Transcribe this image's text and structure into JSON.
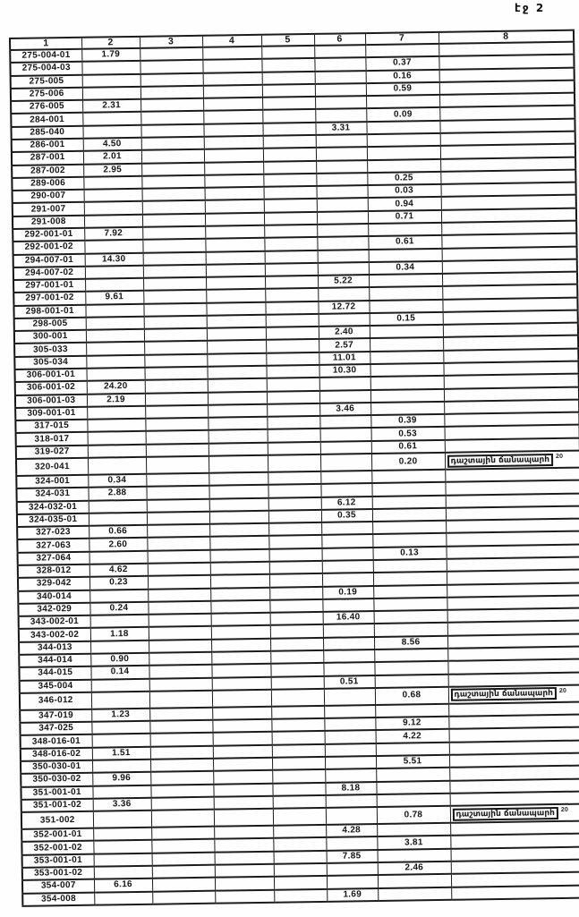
{
  "page": {
    "label": "էջ 2"
  },
  "colors": {
    "paper": "#ffffff",
    "ink": "#1a1a1a"
  },
  "table": {
    "headers": [
      "1",
      "2",
      "3",
      "4",
      "5",
      "6",
      "7",
      "8"
    ],
    "note": {
      "text": "դաշտային ճանապարհ",
      "sup": "20"
    },
    "note_row_indices": [
      32,
      50,
      59
    ],
    "rows": [
      [
        "275-004-01",
        "1.79",
        "",
        "",
        "",
        "",
        "",
        ""
      ],
      [
        "275-004-03",
        "",
        "",
        "",
        "",
        "",
        "0.37",
        ""
      ],
      [
        "275-005",
        "",
        "",
        "",
        "",
        "",
        "0.16",
        ""
      ],
      [
        "275-006",
        "",
        "",
        "",
        "",
        "",
        "0.59",
        ""
      ],
      [
        "276-005",
        "2.31",
        "",
        "",
        "",
        "",
        "",
        ""
      ],
      [
        "284-001",
        "",
        "",
        "",
        "",
        "",
        "0.09",
        ""
      ],
      [
        "285-040",
        "",
        "",
        "",
        "",
        "3.31",
        "",
        ""
      ],
      [
        "286-001",
        "4.50",
        "",
        "",
        "",
        "",
        "",
        ""
      ],
      [
        "287-001",
        "2.01",
        "",
        "",
        "",
        "",
        "",
        ""
      ],
      [
        "287-002",
        "2.95",
        "",
        "",
        "",
        "",
        "",
        ""
      ],
      [
        "289-006",
        "",
        "",
        "",
        "",
        "",
        "0.25",
        ""
      ],
      [
        "290-007",
        "",
        "",
        "",
        "",
        "",
        "0.03",
        ""
      ],
      [
        "291-007",
        "",
        "",
        "",
        "",
        "",
        "0.94",
        ""
      ],
      [
        "291-008",
        "",
        "",
        "",
        "",
        "",
        "0.71",
        ""
      ],
      [
        "292-001-01",
        "7.92",
        "",
        "",
        "",
        "",
        "",
        ""
      ],
      [
        "292-001-02",
        "",
        "",
        "",
        "",
        "",
        "0.61",
        ""
      ],
      [
        "294-007-01",
        "14.30",
        "",
        "",
        "",
        "",
        "",
        ""
      ],
      [
        "294-007-02",
        "",
        "",
        "",
        "",
        "",
        "0.34",
        ""
      ],
      [
        "297-001-01",
        "",
        "",
        "",
        "",
        "5.22",
        "",
        ""
      ],
      [
        "297-001-02",
        "9.61",
        "",
        "",
        "",
        "",
        "",
        ""
      ],
      [
        "298-001-01",
        "",
        "",
        "",
        "",
        "12.72",
        "",
        ""
      ],
      [
        "298-005",
        "",
        "",
        "",
        "",
        "",
        "0.15",
        ""
      ],
      [
        "300-001",
        "",
        "",
        "",
        "",
        "2.40",
        "",
        ""
      ],
      [
        "305-033",
        "",
        "",
        "",
        "",
        "2.57",
        "",
        ""
      ],
      [
        "305-034",
        "",
        "",
        "",
        "",
        "11.01",
        "",
        ""
      ],
      [
        "306-001-01",
        "",
        "",
        "",
        "",
        "10.30",
        "",
        ""
      ],
      [
        "306-001-02",
        "24.20",
        "",
        "",
        "",
        "",
        "",
        ""
      ],
      [
        "306-001-03",
        "2.19",
        "",
        "",
        "",
        "",
        "",
        ""
      ],
      [
        "309-001-01",
        "",
        "",
        "",
        "",
        "3.46",
        "",
        ""
      ],
      [
        "317-015",
        "",
        "",
        "",
        "",
        "",
        "0.39",
        ""
      ],
      [
        "318-017",
        "",
        "",
        "",
        "",
        "",
        "0.53",
        ""
      ],
      [
        "319-027",
        "",
        "",
        "",
        "",
        "",
        "0.61",
        ""
      ],
      [
        "320-041",
        "",
        "",
        "",
        "",
        "",
        "0.20",
        ""
      ],
      [
        "324-001",
        "0.34",
        "",
        "",
        "",
        "",
        "",
        ""
      ],
      [
        "324-031",
        "2.88",
        "",
        "",
        "",
        "",
        "",
        ""
      ],
      [
        "324-032-01",
        "",
        "",
        "",
        "",
        "6.12",
        "",
        ""
      ],
      [
        "324-035-01",
        "",
        "",
        "",
        "",
        "0.35",
        "",
        ""
      ],
      [
        "327-023",
        "0.66",
        "",
        "",
        "",
        "",
        "",
        ""
      ],
      [
        "327-063",
        "2.60",
        "",
        "",
        "",
        "",
        "",
        ""
      ],
      [
        "327-064",
        "",
        "",
        "",
        "",
        "",
        "0.13",
        ""
      ],
      [
        "328-012",
        "4.62",
        "",
        "",
        "",
        "",
        "",
        ""
      ],
      [
        "329-042",
        "0.23",
        "",
        "",
        "",
        "",
        "",
        ""
      ],
      [
        "340-014",
        "",
        "",
        "",
        "",
        "0.19",
        "",
        ""
      ],
      [
        "342-029",
        "0.24",
        "",
        "",
        "",
        "",
        "",
        ""
      ],
      [
        "343-002-01",
        "",
        "",
        "",
        "",
        "16.40",
        "",
        ""
      ],
      [
        "343-002-02",
        "1.18",
        "",
        "",
        "",
        "",
        "",
        ""
      ],
      [
        "344-013",
        "",
        "",
        "",
        "",
        "",
        "8.56",
        ""
      ],
      [
        "344-014",
        "0.90",
        "",
        "",
        "",
        "",
        "",
        ""
      ],
      [
        "344-015",
        "0.14",
        "",
        "",
        "",
        "",
        "",
        ""
      ],
      [
        "345-004",
        "",
        "",
        "",
        "",
        "0.51",
        "",
        ""
      ],
      [
        "346-012",
        "",
        "",
        "",
        "",
        "",
        "0.68",
        ""
      ],
      [
        "347-019",
        "1.23",
        "",
        "",
        "",
        "",
        "",
        ""
      ],
      [
        "347-025",
        "",
        "",
        "",
        "",
        "",
        "9.12",
        ""
      ],
      [
        "348-016-01",
        "",
        "",
        "",
        "",
        "",
        "4.22",
        ""
      ],
      [
        "348-016-02",
        "1.51",
        "",
        "",
        "",
        "",
        "",
        ""
      ],
      [
        "350-030-01",
        "",
        "",
        "",
        "",
        "",
        "5.51",
        ""
      ],
      [
        "350-030-02",
        "9.96",
        "",
        "",
        "",
        "",
        "",
        ""
      ],
      [
        "351-001-01",
        "",
        "",
        "",
        "",
        "8.18",
        "",
        ""
      ],
      [
        "351-001-02",
        "3.36",
        "",
        "",
        "",
        "",
        "",
        ""
      ],
      [
        "351-002",
        "",
        "",
        "",
        "",
        "",
        "0.78",
        ""
      ],
      [
        "352-001-01",
        "",
        "",
        "",
        "",
        "4.28",
        "",
        ""
      ],
      [
        "352-001-02",
        "",
        "",
        "",
        "",
        "",
        "3.81",
        ""
      ],
      [
        "353-001-01",
        "",
        "",
        "",
        "",
        "7.85",
        "",
        ""
      ],
      [
        "353-001-02",
        "",
        "",
        "",
        "",
        "",
        "2.46",
        ""
      ],
      [
        "354-007",
        "6.16",
        "",
        "",
        "",
        "",
        "",
        ""
      ],
      [
        "354-008",
        "",
        "",
        "",
        "",
        "1.69",
        "",
        ""
      ]
    ]
  }
}
